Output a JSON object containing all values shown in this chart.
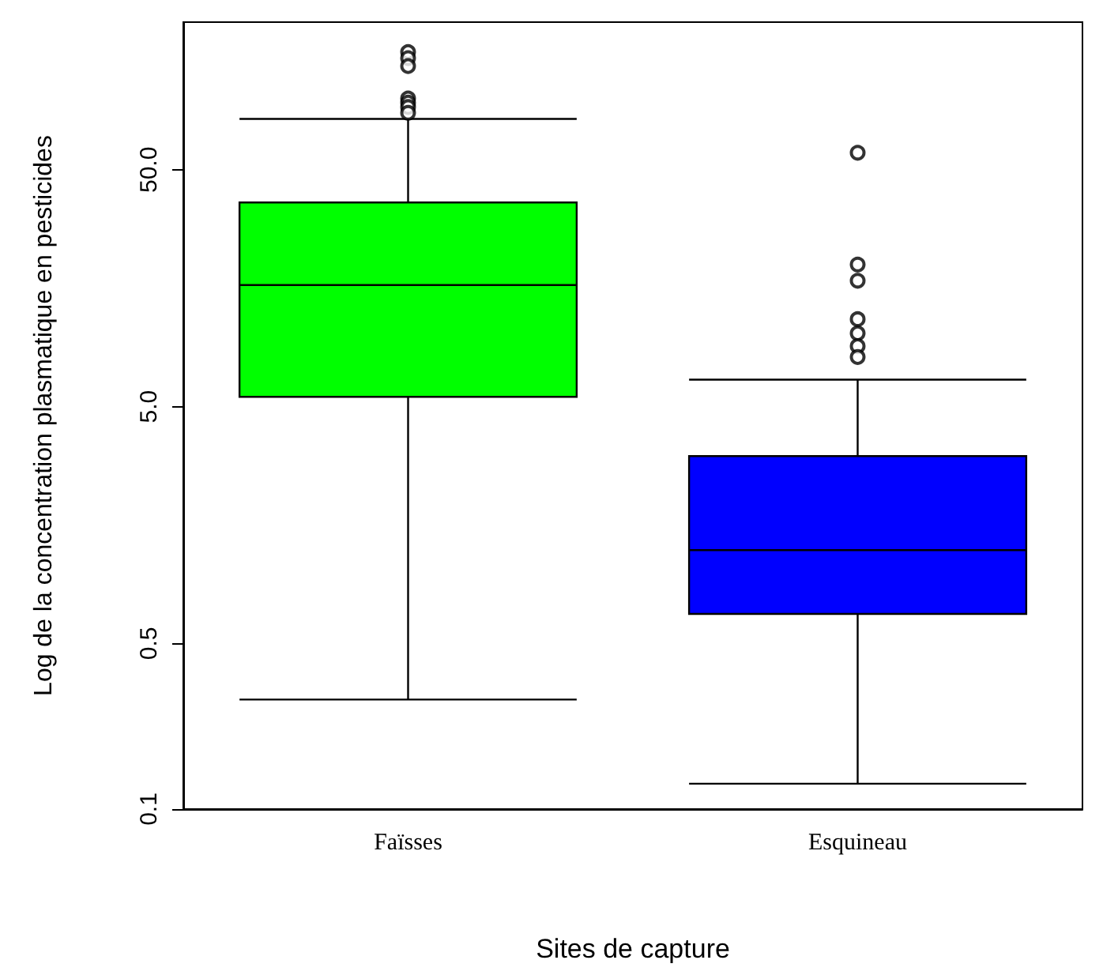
{
  "chart_data": {
    "type": "box",
    "xlabel": "Sites de capture",
    "ylabel": "Log de la concentration plasmatique en pesticides",
    "categories": [
      "Faïsses",
      "Esquineau"
    ],
    "colors": [
      "#00ff00",
      "#0000ff"
    ],
    "boxes": [
      {
        "low": 0.29,
        "q1": 5.5,
        "median": 16.3,
        "q3": 36.4,
        "high": 82,
        "outliers": [
          157,
          148,
          137,
          100,
          96,
          92,
          87
        ]
      },
      {
        "low": 0.128,
        "q1": 0.667,
        "median": 1.24,
        "q3": 3.09,
        "high": 6.5,
        "outliers": [
          59,
          19.9,
          17,
          11.7,
          10.2,
          9.0,
          8.1
        ]
      }
    ],
    "log": "y",
    "ylim": [
      0.1,
      210
    ],
    "yticks": [
      0.1,
      0.5,
      {
        "value": 5,
        "label": "5.0"
      },
      {
        "value": 50,
        "label": "50.0"
      }
    ],
    "grid": false
  }
}
